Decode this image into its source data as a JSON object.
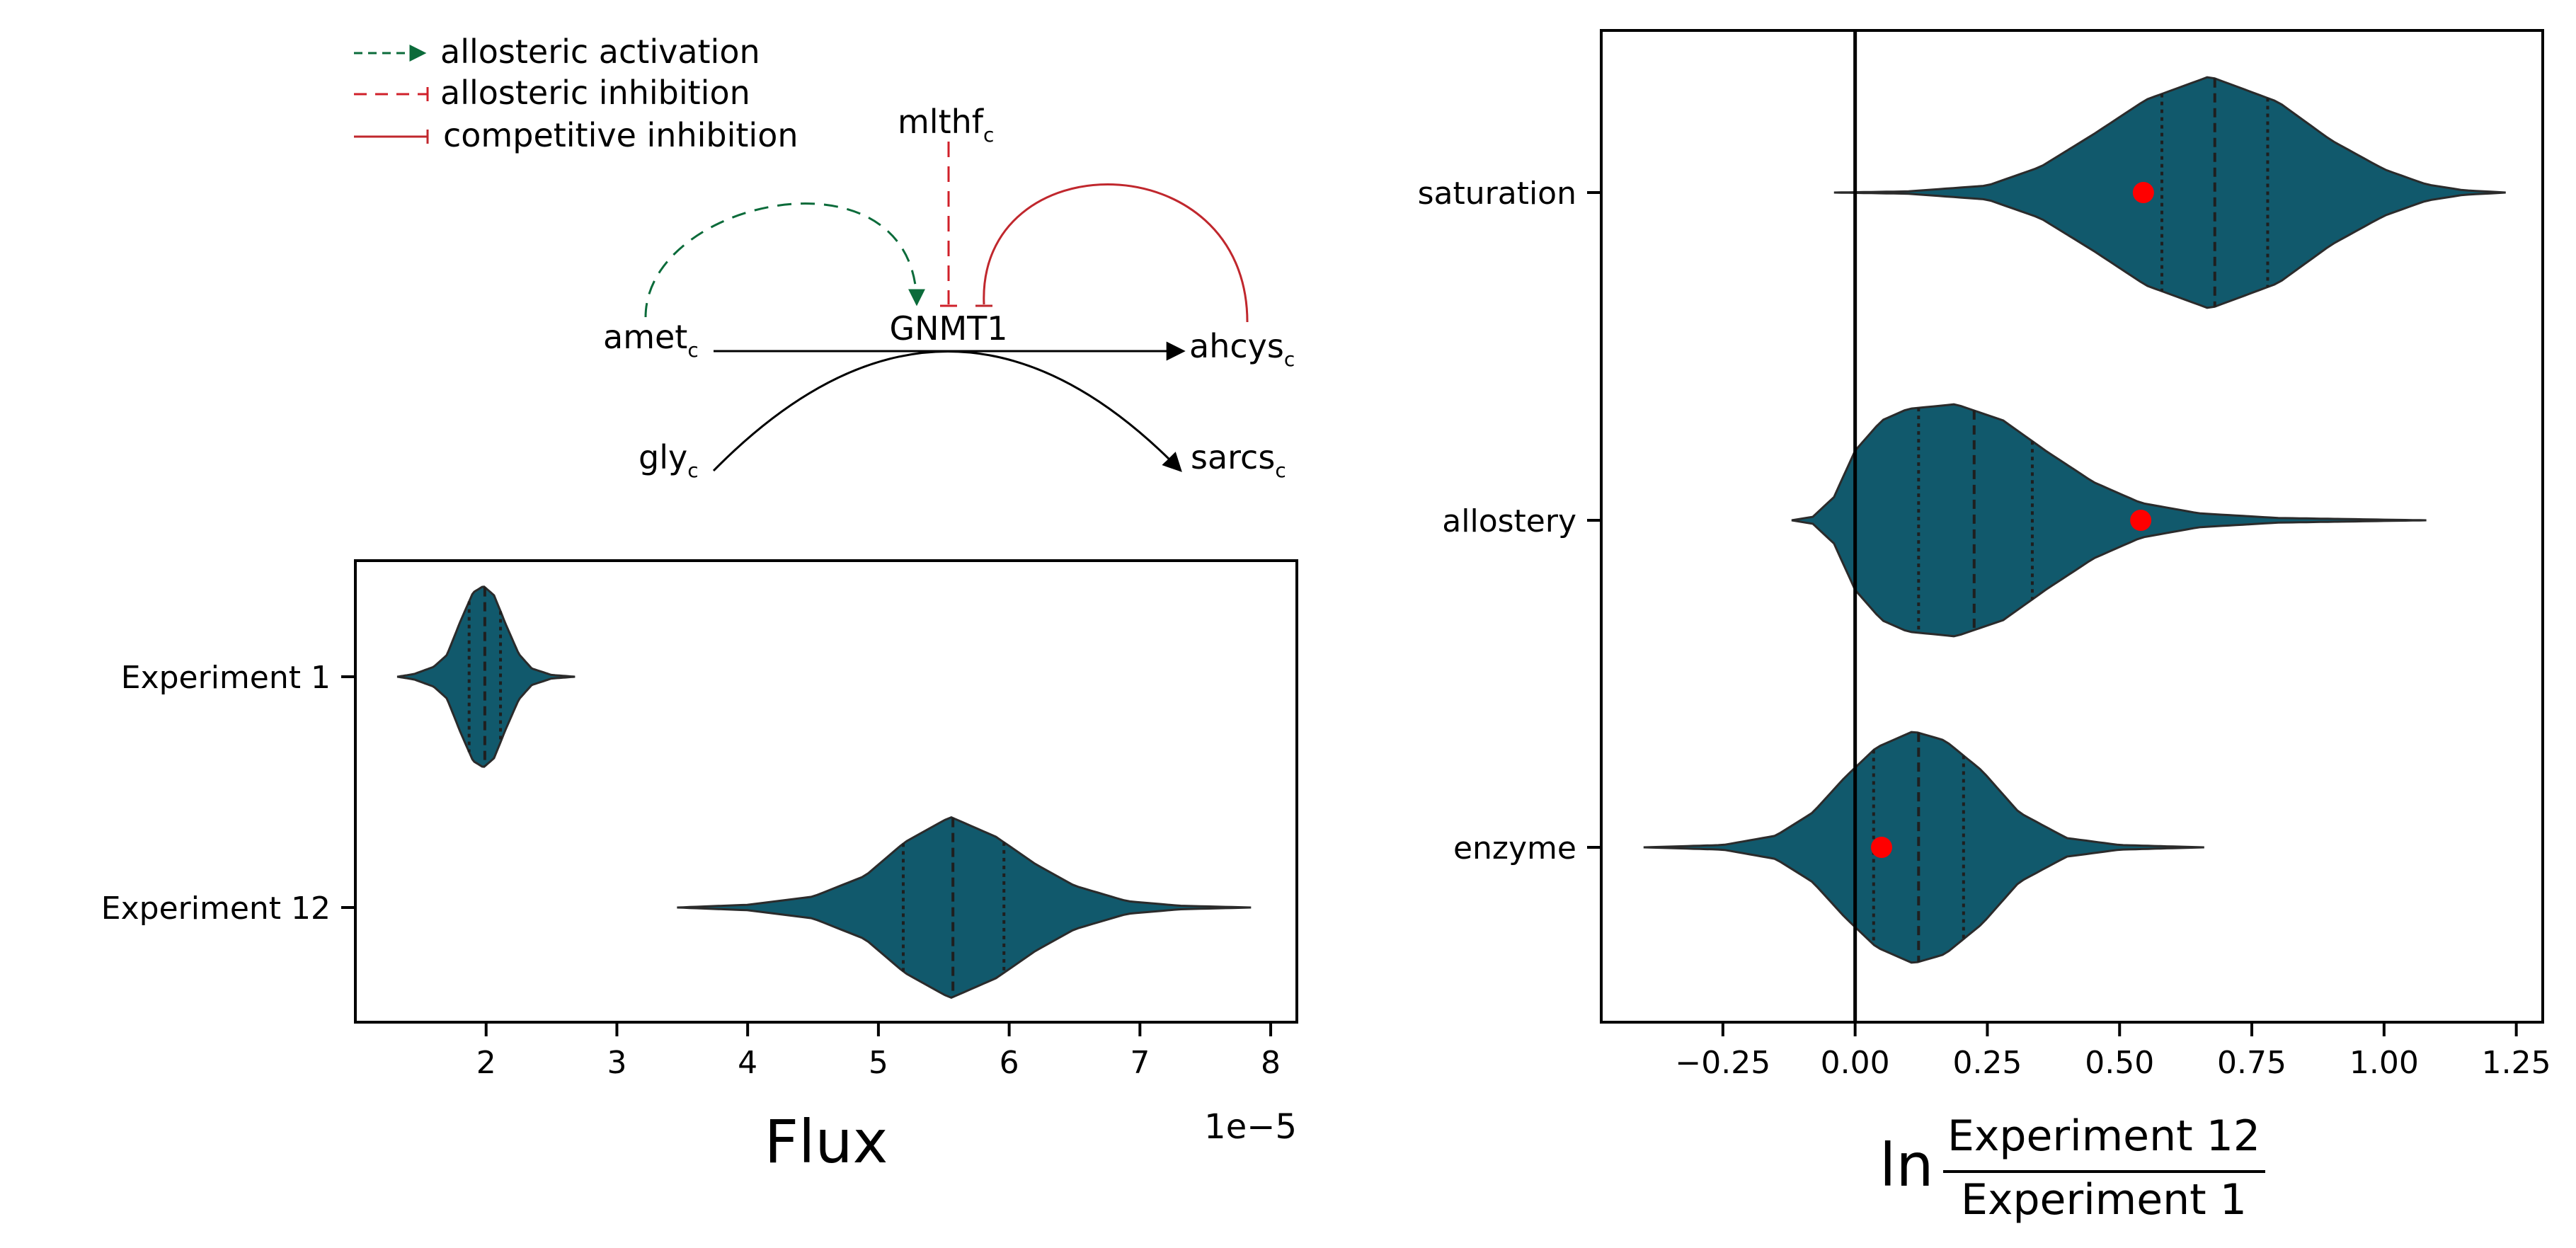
{
  "colors": {
    "violin_fill": "#11596c",
    "violin_edge": "#2b2b2b",
    "marker": "#ff0000",
    "activation": "#0b6b3a",
    "inhibition": "#d0202a",
    "competitive": "#c0272d",
    "reaction": "#000000"
  },
  "diagram": {
    "legend": [
      {
        "label": "allosteric activation",
        "style": "activation"
      },
      {
        "label": "allosteric inhibition",
        "style": "allosteric-inhibition"
      },
      {
        "label": "competitive inhibition",
        "style": "competitive-inhibition"
      }
    ],
    "enzyme": "GNMT1",
    "metabolites": {
      "mlthf": {
        "name": "mlthf",
        "sub": "c"
      },
      "amet": {
        "name": "amet",
        "sub": "c"
      },
      "ahcys": {
        "name": "ahcys",
        "sub": "c"
      },
      "gly": {
        "name": "gly",
        "sub": "c"
      },
      "sarcs": {
        "name": "sarcs",
        "sub": "c"
      }
    }
  },
  "chart_data": [
    {
      "type": "violin",
      "orientation": "horizontal",
      "xlabel": "Flux",
      "x_offset_label": "1e−5",
      "xlim": [
        1.0,
        8.2
      ],
      "xticks": [
        2,
        3,
        4,
        5,
        6,
        7,
        8
      ],
      "xtick_labels": [
        "2",
        "3",
        "4",
        "5",
        "6",
        "7",
        "8"
      ],
      "categories": [
        "Experiment 1",
        "Experiment 12"
      ],
      "violins": [
        {
          "label": "Experiment 1",
          "min": 1.32,
          "max": 2.68,
          "peak": 2.0,
          "quartiles": [
            1.87,
            1.99,
            2.11
          ],
          "profile": [
            [
              1.32,
              0.0
            ],
            [
              1.45,
              0.03
            ],
            [
              1.6,
              0.11
            ],
            [
              1.7,
              0.24
            ],
            [
              1.8,
              0.6
            ],
            [
              1.9,
              0.93
            ],
            [
              1.98,
              1.0
            ],
            [
              2.06,
              0.9
            ],
            [
              2.15,
              0.58
            ],
            [
              2.25,
              0.25
            ],
            [
              2.35,
              0.09
            ],
            [
              2.5,
              0.02
            ],
            [
              2.68,
              0.0
            ]
          ]
        },
        {
          "label": "Experiment 12",
          "min": 3.46,
          "max": 7.85,
          "peak": 5.55,
          "quartiles": [
            5.19,
            5.57,
            5.96
          ],
          "profile": [
            [
              3.46,
              0.0
            ],
            [
              4.0,
              0.03
            ],
            [
              4.5,
              0.12
            ],
            [
              4.9,
              0.35
            ],
            [
              5.2,
              0.72
            ],
            [
              5.55,
              1.0
            ],
            [
              5.9,
              0.78
            ],
            [
              6.2,
              0.48
            ],
            [
              6.5,
              0.24
            ],
            [
              6.9,
              0.07
            ],
            [
              7.3,
              0.02
            ],
            [
              7.85,
              0.0
            ]
          ]
        }
      ]
    },
    {
      "type": "violin",
      "orientation": "horizontal",
      "xlabel_prefix": "ln",
      "xlabel_numerator": "Experiment 12",
      "xlabel_denominator": "Experiment 1",
      "xlim": [
        -0.48,
        1.3
      ],
      "xticks": [
        -0.25,
        0.0,
        0.25,
        0.5,
        0.75,
        1.0,
        1.25
      ],
      "xtick_labels": [
        "−0.25",
        "0.00",
        "0.25",
        "0.50",
        "0.75",
        "1.00",
        "1.25"
      ],
      "vline": 0.0,
      "categories": [
        "saturation",
        "allostery",
        "enzyme"
      ],
      "violins": [
        {
          "label": "saturation",
          "min": -0.04,
          "max": 1.23,
          "peak": 0.68,
          "quartiles": [
            0.58,
            0.68,
            0.78
          ],
          "point": 0.545,
          "profile": [
            [
              -0.04,
              0.0
            ],
            [
              0.1,
              0.01
            ],
            [
              0.25,
              0.06
            ],
            [
              0.35,
              0.22
            ],
            [
              0.45,
              0.5
            ],
            [
              0.55,
              0.8
            ],
            [
              0.67,
              1.0
            ],
            [
              0.8,
              0.78
            ],
            [
              0.9,
              0.45
            ],
            [
              1.0,
              0.2
            ],
            [
              1.08,
              0.07
            ],
            [
              1.15,
              0.02
            ],
            [
              1.23,
              0.0
            ]
          ]
        },
        {
          "label": "allostery",
          "min": -0.12,
          "max": 1.08,
          "peak": 0.19,
          "quartiles": [
            0.12,
            0.225,
            0.335
          ],
          "point": 0.54,
          "profile": [
            [
              -0.12,
              0.0
            ],
            [
              -0.08,
              0.03
            ],
            [
              -0.04,
              0.2
            ],
            [
              0.0,
              0.6
            ],
            [
              0.05,
              0.86
            ],
            [
              0.1,
              0.96
            ],
            [
              0.19,
              1.0
            ],
            [
              0.28,
              0.86
            ],
            [
              0.36,
              0.6
            ],
            [
              0.45,
              0.33
            ],
            [
              0.54,
              0.15
            ],
            [
              0.65,
              0.06
            ],
            [
              0.8,
              0.02
            ],
            [
              1.08,
              0.0
            ]
          ]
        },
        {
          "label": "enzyme",
          "min": -0.4,
          "max": 0.66,
          "peak": 0.11,
          "quartiles": [
            0.035,
            0.12,
            0.205
          ],
          "point": 0.05,
          "profile": [
            [
              -0.4,
              0.0
            ],
            [
              -0.25,
              0.02
            ],
            [
              -0.15,
              0.1
            ],
            [
              -0.08,
              0.3
            ],
            [
              -0.02,
              0.6
            ],
            [
              0.04,
              0.86
            ],
            [
              0.11,
              1.0
            ],
            [
              0.17,
              0.92
            ],
            [
              0.24,
              0.66
            ],
            [
              0.31,
              0.3
            ],
            [
              0.4,
              0.08
            ],
            [
              0.5,
              0.02
            ],
            [
              0.66,
              0.0
            ]
          ]
        }
      ]
    }
  ]
}
